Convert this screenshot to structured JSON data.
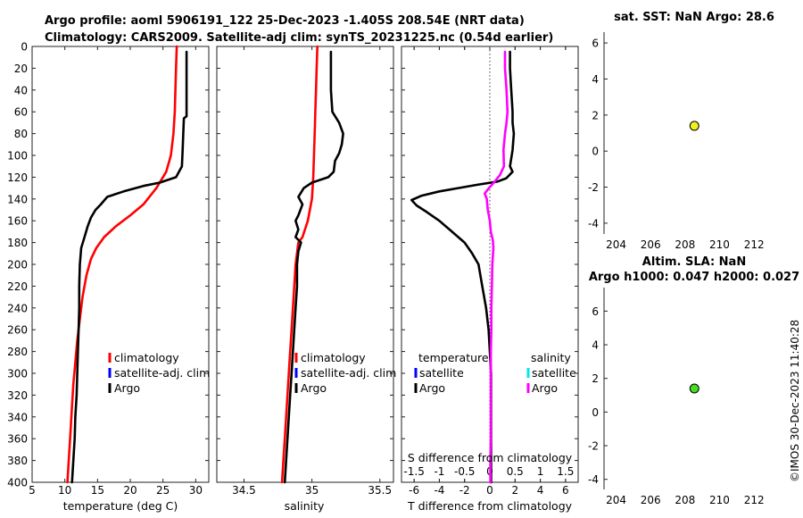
{
  "header": {
    "title_line1": "Argo profile: aoml 5906191_122 25-Dec-2023 -1.405S 208.54E (NRT data)",
    "title_line2": "Climatology: CARS2009. Satellite-adj clim: synTS_20231225.nc (0.54d earlier)"
  },
  "timestamp": "©IMOS 30-Dec-2023 11:40:28",
  "colors": {
    "climatology": "#ff0000",
    "satellite": "#0000ff",
    "argo": "#000000",
    "salinity_satellite": "#00e5ee",
    "salinity_argo": "#ff00ff",
    "sst_marker": "#f0f020",
    "sla_marker": "#44dd22"
  },
  "legend": {
    "climatology": "climatology",
    "satellite_adj": "satellite-adj. clim",
    "argo": "Argo",
    "temperature": "temperature",
    "salinity": "salinity",
    "satellite": "satellite"
  },
  "chart_data": [
    {
      "type": "line",
      "id": "temperature",
      "xlabel": "temperature (deg C)",
      "ylabel": "depth",
      "xlim": [
        5,
        32
      ],
      "ylim": [
        0,
        400
      ],
      "y_reversed": true,
      "xticks": [
        5,
        10,
        15,
        20,
        25,
        30
      ],
      "yticks": [
        0,
        20,
        40,
        60,
        80,
        100,
        120,
        140,
        160,
        180,
        200,
        220,
        240,
        260,
        280,
        300,
        320,
        340,
        360,
        380,
        400
      ],
      "series": [
        {
          "name": "climatology",
          "color": "#ff0000",
          "points": [
            [
              27.1,
              0
            ],
            [
              27.0,
              20
            ],
            [
              26.9,
              40
            ],
            [
              26.8,
              60
            ],
            [
              26.6,
              80
            ],
            [
              26.2,
              100
            ],
            [
              25.5,
              115
            ],
            [
              24.0,
              130
            ],
            [
              22.0,
              145
            ],
            [
              20.0,
              155
            ],
            [
              17.8,
              165
            ],
            [
              16.0,
              175
            ],
            [
              14.8,
              185
            ],
            [
              14.0,
              195
            ],
            [
              13.3,
              210
            ],
            [
              12.7,
              230
            ],
            [
              12.3,
              250
            ],
            [
              11.9,
              270
            ],
            [
              11.6,
              290
            ],
            [
              11.3,
              310
            ],
            [
              11.1,
              330
            ],
            [
              10.9,
              350
            ],
            [
              10.7,
              370
            ],
            [
              10.5,
              390
            ],
            [
              10.4,
              400
            ]
          ]
        },
        {
          "name": "Argo",
          "color": "#000000",
          "points": [
            [
              28.6,
              5
            ],
            [
              28.6,
              20
            ],
            [
              28.6,
              40
            ],
            [
              28.6,
              60
            ],
            [
              28.6,
              64
            ],
            [
              28.2,
              66
            ],
            [
              28.1,
              80
            ],
            [
              28.0,
              95
            ],
            [
              27.9,
              110
            ],
            [
              27.0,
              120
            ],
            [
              24.5,
              125
            ],
            [
              22.0,
              128
            ],
            [
              19.0,
              133
            ],
            [
              16.5,
              138
            ],
            [
              15.5,
              145
            ],
            [
              14.7,
              150
            ],
            [
              14.0,
              157
            ],
            [
              13.5,
              165
            ],
            [
              13.0,
              175
            ],
            [
              12.5,
              185
            ],
            [
              12.3,
              200
            ],
            [
              12.2,
              220
            ],
            [
              12.2,
              240
            ],
            [
              12.1,
              260
            ],
            [
              12.0,
              280
            ],
            [
              11.9,
              300
            ],
            [
              11.8,
              320
            ],
            [
              11.6,
              340
            ],
            [
              11.5,
              360
            ],
            [
              11.3,
              380
            ],
            [
              11.1,
              400
            ]
          ]
        }
      ]
    },
    {
      "type": "line",
      "id": "salinity",
      "xlabel": "salinity",
      "xlim": [
        34.3,
        35.6
      ],
      "ylim": [
        0,
        400
      ],
      "y_reversed": true,
      "xticks": [
        34.5,
        35,
        35.5
      ],
      "series": [
        {
          "name": "climatology",
          "color": "#ff0000",
          "points": [
            [
              35.04,
              0
            ],
            [
              35.035,
              20
            ],
            [
              35.03,
              40
            ],
            [
              35.025,
              60
            ],
            [
              35.02,
              80
            ],
            [
              35.015,
              100
            ],
            [
              35.01,
              120
            ],
            [
              35.0,
              140
            ],
            [
              34.97,
              160
            ],
            [
              34.93,
              175
            ],
            [
              34.9,
              180
            ],
            [
              34.88,
              200
            ],
            [
              34.87,
              220
            ],
            [
              34.86,
              240
            ],
            [
              34.85,
              260
            ],
            [
              34.84,
              280
            ],
            [
              34.83,
              300
            ],
            [
              34.82,
              320
            ],
            [
              34.81,
              340
            ],
            [
              34.8,
              360
            ],
            [
              34.79,
              380
            ],
            [
              34.78,
              400
            ]
          ]
        },
        {
          "name": "Argo",
          "color": "#000000",
          "points": [
            [
              35.14,
              5
            ],
            [
              35.14,
              20
            ],
            [
              35.14,
              40
            ],
            [
              35.15,
              60
            ],
            [
              35.2,
              70
            ],
            [
              35.23,
              80
            ],
            [
              35.22,
              90
            ],
            [
              35.2,
              98
            ],
            [
              35.17,
              105
            ],
            [
              35.16,
              115
            ],
            [
              35.12,
              120
            ],
            [
              35.0,
              125
            ],
            [
              34.94,
              130
            ],
            [
              34.9,
              138
            ],
            [
              34.93,
              145
            ],
            [
              34.9,
              155
            ],
            [
              34.88,
              160
            ],
            [
              34.9,
              168
            ],
            [
              34.88,
              175
            ],
            [
              34.92,
              180
            ],
            [
              34.9,
              188
            ],
            [
              34.89,
              200
            ],
            [
              34.89,
              220
            ],
            [
              34.88,
              240
            ],
            [
              34.87,
              260
            ],
            [
              34.86,
              280
            ],
            [
              34.85,
              300
            ],
            [
              34.84,
              320
            ],
            [
              34.83,
              340
            ],
            [
              34.82,
              360
            ],
            [
              34.81,
              380
            ],
            [
              34.8,
              400
            ]
          ]
        }
      ]
    },
    {
      "type": "line",
      "id": "difference",
      "xlabel": "T difference from climatology",
      "x2label": "S difference from climatology",
      "xlim": [
        -7,
        7
      ],
      "x2lim": [
        -1.75,
        1.75
      ],
      "ylim": [
        0,
        400
      ],
      "y_reversed": true,
      "xticks": [
        -6,
        -4,
        -2,
        0,
        2,
        4,
        6
      ],
      "x2ticks": [
        -1.5,
        -1,
        -0.5,
        0,
        0.5,
        1,
        1.5
      ],
      "x2ticklabels": [
        "-1.5",
        "-1",
        "-0.5",
        "0",
        "0.5",
        "1",
        "1.5"
      ],
      "zero_line": true,
      "series": [
        {
          "name": "temperature Argo",
          "axis": "T",
          "color": "#000000",
          "points": [
            [
              1.6,
              5
            ],
            [
              1.6,
              20
            ],
            [
              1.7,
              40
            ],
            [
              1.8,
              60
            ],
            [
              1.8,
              70
            ],
            [
              1.9,
              80
            ],
            [
              1.8,
              95
            ],
            [
              1.6,
              110
            ],
            [
              1.8,
              115
            ],
            [
              1.3,
              121
            ],
            [
              0.6,
              124
            ],
            [
              -1.0,
              127
            ],
            [
              -2.5,
              130
            ],
            [
              -4.0,
              133
            ],
            [
              -5.4,
              137
            ],
            [
              -6.2,
              141
            ],
            [
              -5.8,
              146
            ],
            [
              -5.0,
              152
            ],
            [
              -4.0,
              160
            ],
            [
              -3.0,
              170
            ],
            [
              -2.0,
              180
            ],
            [
              -1.4,
              190
            ],
            [
              -0.9,
              200
            ],
            [
              -0.6,
              220
            ],
            [
              -0.3,
              240
            ],
            [
              -0.1,
              260
            ],
            [
              0.0,
              280
            ],
            [
              0.1,
              300
            ],
            [
              0.1,
              320
            ],
            [
              0.1,
              340
            ],
            [
              0.1,
              360
            ],
            [
              0.1,
              380
            ],
            [
              0.1,
              400
            ]
          ]
        },
        {
          "name": "salinity Argo",
          "axis": "S",
          "color": "#ff00ff",
          "points": [
            [
              0.3,
              5
            ],
            [
              0.3,
              20
            ],
            [
              0.33,
              40
            ],
            [
              0.35,
              60
            ],
            [
              0.33,
              70
            ],
            [
              0.3,
              80
            ],
            [
              0.27,
              95
            ],
            [
              0.28,
              110
            ],
            [
              0.2,
              118
            ],
            [
              0.08,
              125
            ],
            [
              -0.02,
              130
            ],
            [
              -0.1,
              135
            ],
            [
              -0.06,
              140
            ],
            [
              -0.04,
              150
            ],
            [
              0.0,
              160
            ],
            [
              0.02,
              170
            ],
            [
              0.06,
              178
            ],
            [
              0.07,
              185
            ],
            [
              0.05,
              200
            ],
            [
              0.04,
              220
            ],
            [
              0.03,
              240
            ],
            [
              0.03,
              260
            ],
            [
              0.02,
              280
            ],
            [
              0.02,
              300
            ],
            [
              0.02,
              320
            ],
            [
              0.02,
              340
            ],
            [
              0.02,
              360
            ],
            [
              0.01,
              380
            ],
            [
              0.01,
              400
            ]
          ]
        }
      ]
    },
    {
      "type": "scatter",
      "id": "sst",
      "title": "sat. SST: NaN Argo: 28.6",
      "xlim": [
        203.3,
        213.7
      ],
      "ylim": [
        -4.6,
        6.6
      ],
      "xticks": [
        204,
        206,
        208,
        210,
        212
      ],
      "yticks": [
        -4,
        -2,
        0,
        2,
        4,
        6
      ],
      "points": [
        {
          "x": 208.54,
          "y": 1.4,
          "color": "#f0f020"
        }
      ]
    },
    {
      "type": "scatter",
      "id": "sla",
      "title": "Altim. SLA: NaN",
      "title2": "Argo h1000: 0.047 h2000: 0.027",
      "xlim": [
        203.3,
        213.7
      ],
      "ylim": [
        -4.6,
        7.4
      ],
      "xticks": [
        204,
        206,
        208,
        210,
        212
      ],
      "yticks": [
        -4,
        -2,
        0,
        2,
        4,
        6
      ],
      "points": [
        {
          "x": 208.54,
          "y": 1.4,
          "color": "#44dd22"
        }
      ]
    }
  ]
}
